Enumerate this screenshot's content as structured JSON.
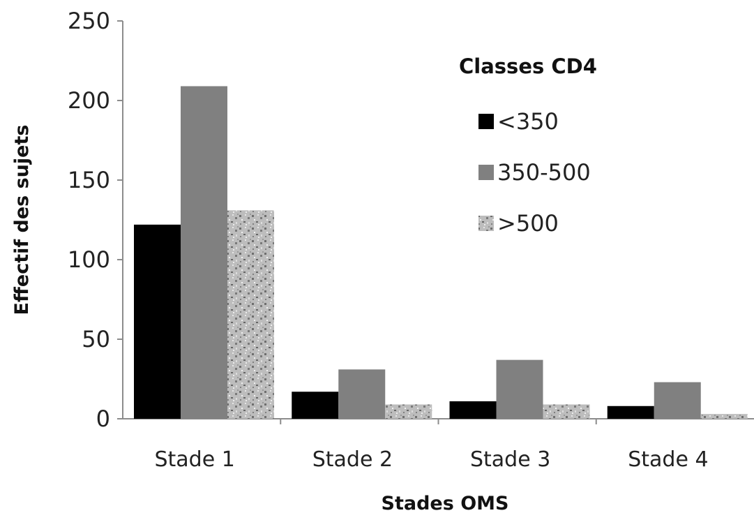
{
  "chart_data": {
    "type": "bar",
    "title": "",
    "xlabel": "Stades OMS",
    "ylabel": "Effectif des sujets",
    "categories": [
      "Stade 1",
      "Stade 2",
      "Stade 3",
      "Stade 4"
    ],
    "ylim": [
      0,
      250
    ],
    "yticks": [
      "0",
      "50",
      "100",
      "150",
      "200",
      "250"
    ],
    "grid": false,
    "legend": {
      "title": "Classes CD4",
      "placement": "top-right"
    },
    "series": [
      {
        "name": "<350",
        "values": [
          122,
          17,
          11,
          8
        ],
        "color": "#000000"
      },
      {
        "name": "350-500",
        "values": [
          209,
          31,
          37,
          23
        ],
        "color": "#808080"
      },
      {
        "name": ">500",
        "values": [
          131,
          9,
          9,
          3
        ],
        "color": "#b8b8b8",
        "pattern": "speckled"
      }
    ]
  }
}
